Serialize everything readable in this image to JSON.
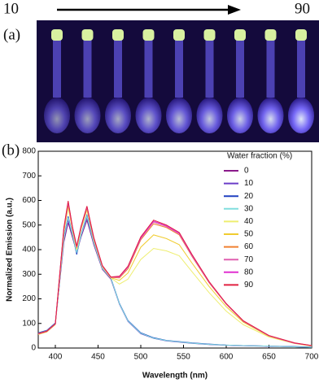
{
  "panel_a": {
    "label": "(a)",
    "start": "10",
    "end": "90"
  },
  "chart_data": {
    "type": "line",
    "panel_label": "(b)",
    "x_label": "Wavelength (nm)",
    "y_label": "Normalized Emission (a.u.)",
    "legend_title": "Water fraction (%)",
    "x": [
      380,
      390,
      400,
      410,
      415,
      420,
      425,
      430,
      437,
      445,
      455,
      465,
      475,
      485,
      500,
      515,
      530,
      545,
      560,
      580,
      600,
      620,
      650,
      680,
      700
    ],
    "xlim": [
      380,
      700
    ],
    "xticks": [
      400,
      450,
      500,
      550,
      600,
      650,
      700
    ],
    "ylim": [
      0,
      800
    ],
    "yticks": [
      0,
      100,
      200,
      300,
      400,
      500,
      600,
      700,
      800
    ],
    "series": [
      {
        "name": "0",
        "color": "#8b1a8b",
        "values": [
          60,
          70,
          100,
          430,
          510,
          450,
          390,
          450,
          520,
          420,
          320,
          280,
          180,
          110,
          60,
          40,
          30,
          25,
          20,
          15,
          12,
          10,
          8,
          5,
          3
        ]
      },
      {
        "name": "10",
        "color": "#6a3dc8",
        "values": [
          58,
          68,
          98,
          440,
          520,
          460,
          385,
          455,
          530,
          425,
          322,
          282,
          178,
          108,
          58,
          39,
          29,
          24,
          19,
          14,
          11,
          9,
          7,
          5,
          3
        ]
      },
      {
        "name": "20",
        "color": "#2040c0",
        "values": [
          62,
          72,
          102,
          450,
          535,
          465,
          380,
          460,
          540,
          430,
          325,
          285,
          182,
          112,
          62,
          42,
          31,
          26,
          21,
          16,
          12,
          10,
          8,
          6,
          4
        ]
      },
      {
        "name": "30",
        "color": "#80dede",
        "values": [
          60,
          70,
          100,
          445,
          530,
          462,
          388,
          458,
          535,
          428,
          324,
          284,
          180,
          110,
          60,
          40,
          30,
          25,
          20,
          15,
          12,
          10,
          8,
          5,
          3
        ]
      },
      {
        "name": "40",
        "color": "#eeee70",
        "values": [
          55,
          65,
          95,
          470,
          570,
          480,
          400,
          480,
          560,
          440,
          330,
          285,
          260,
          280,
          360,
          405,
          395,
          375,
          310,
          225,
          150,
          95,
          45,
          18,
          8
        ]
      },
      {
        "name": "50",
        "color": "#f0cc30",
        "values": [
          56,
          66,
          96,
          475,
          580,
          485,
          405,
          485,
          565,
          442,
          332,
          286,
          275,
          305,
          410,
          460,
          445,
          420,
          345,
          250,
          168,
          105,
          48,
          19,
          9
        ]
      },
      {
        "name": "60",
        "color": "#f08030",
        "values": [
          57,
          67,
          97,
          480,
          585,
          488,
          408,
          488,
          570,
          445,
          333,
          287,
          285,
          322,
          440,
          505,
          490,
          460,
          372,
          265,
          178,
          108,
          50,
          20,
          10
        ]
      },
      {
        "name": "70",
        "color": "#e060b0",
        "values": [
          58,
          68,
          98,
          485,
          590,
          490,
          410,
          490,
          572,
          447,
          334,
          288,
          288,
          328,
          445,
          512,
          494,
          464,
          375,
          267,
          179,
          109,
          50,
          20,
          10
        ]
      },
      {
        "name": "80",
        "color": "#e030d0",
        "values": [
          58,
          68,
          98,
          488,
          595,
          492,
          412,
          492,
          575,
          448,
          335,
          288,
          290,
          330,
          448,
          516,
          497,
          467,
          377,
          268,
          180,
          110,
          50,
          20,
          10
        ]
      },
      {
        "name": "90",
        "color": "#e02040",
        "values": [
          59,
          69,
          99,
          490,
          598,
          494,
          414,
          494,
          577,
          450,
          336,
          289,
          292,
          333,
          452,
          520,
          500,
          470,
          380,
          270,
          181,
          111,
          51,
          21,
          10
        ]
      }
    ]
  }
}
